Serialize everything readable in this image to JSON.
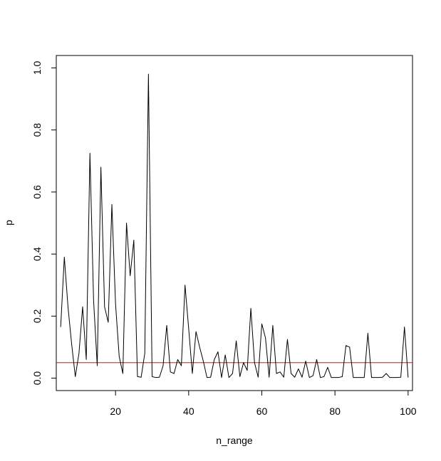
{
  "chart_data": {
    "type": "line",
    "title": "",
    "xlabel": "n_range",
    "ylabel": "p",
    "xlim": [
      3.8,
      101.2
    ],
    "ylim": [
      -0.04,
      1.04
    ],
    "xticks": [
      20,
      40,
      60,
      80,
      100
    ],
    "yticks": [
      0.0,
      0.2,
      0.4,
      0.6,
      0.8,
      1.0
    ],
    "xtick_labels": [
      "20",
      "40",
      "60",
      "80",
      "100"
    ],
    "ytick_labels": [
      "0.0",
      "0.2",
      "0.4",
      "0.6",
      "0.8",
      "1.0"
    ],
    "grid": false,
    "reference_line": {
      "y": 0.05,
      "color": "#ff0000"
    },
    "series": [
      {
        "color": "#000000",
        "x": [
          5,
          6,
          7,
          8,
          9,
          10,
          11,
          12,
          13,
          14,
          15,
          16,
          17,
          18,
          19,
          20,
          21,
          22,
          23,
          24,
          25,
          26,
          27,
          28,
          29,
          30,
          31,
          32,
          33,
          34,
          35,
          36,
          37,
          38,
          39,
          40,
          41,
          42,
          43,
          44,
          45,
          46,
          47,
          48,
          49,
          50,
          51,
          52,
          53,
          54,
          55,
          56,
          57,
          58,
          59,
          60,
          61,
          62,
          63,
          64,
          65,
          66,
          67,
          68,
          69,
          70,
          71,
          72,
          73,
          74,
          75,
          76,
          77,
          78,
          79,
          80,
          81,
          82,
          83,
          84,
          85,
          86,
          87,
          88,
          89,
          90,
          91,
          92,
          93,
          94,
          95,
          96,
          97,
          98,
          99,
          100
        ],
        "y": [
          0.165,
          0.39,
          0.23,
          0.11,
          0.005,
          0.08,
          0.23,
          0.06,
          0.725,
          0.25,
          0.04,
          0.68,
          0.23,
          0.18,
          0.56,
          0.24,
          0.07,
          0.015,
          0.5,
          0.33,
          0.445,
          0.005,
          0.003,
          0.08,
          0.98,
          0.005,
          0.002,
          0.003,
          0.04,
          0.17,
          0.02,
          0.015,
          0.06,
          0.04,
          0.3,
          0.16,
          0.015,
          0.15,
          0.1,
          0.055,
          0.002,
          0.003,
          0.06,
          0.085,
          0.002,
          0.075,
          0.002,
          0.015,
          0.12,
          0.005,
          0.05,
          0.025,
          0.225,
          0.05,
          0.003,
          0.175,
          0.13,
          0.003,
          0.17,
          0.015,
          0.02,
          0.003,
          0.125,
          0.015,
          0.003,
          0.03,
          0.003,
          0.055,
          0.002,
          0.008,
          0.06,
          0.002,
          0.005,
          0.035,
          0.002,
          0.002,
          0.002,
          0.005,
          0.105,
          0.1,
          0.002,
          0.002,
          0.002,
          0.002,
          0.145,
          0.002,
          0.002,
          0.002,
          0.003,
          0.015,
          0.002,
          0.002,
          0.002,
          0.003,
          0.165,
          0.002
        ]
      }
    ]
  }
}
